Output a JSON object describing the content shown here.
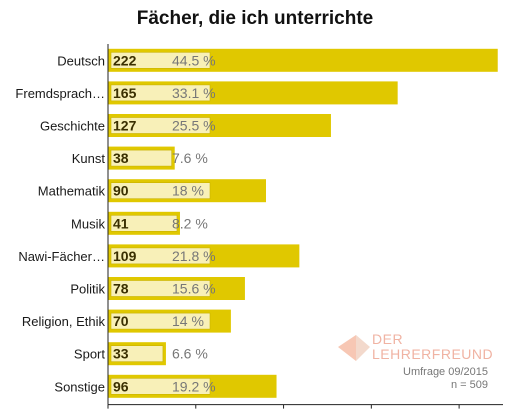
{
  "chart_data": {
    "type": "bar",
    "orientation": "horizontal",
    "title": "Fächer, die ich unterrichte",
    "categories": [
      "Deutsch",
      "Fremdsprach…",
      "Geschichte",
      "Kunst",
      "Mathematik",
      "Musik",
      "Nawi-Fächer…",
      "Politik",
      "Religion, Ethik",
      "Sport",
      "Sonstige"
    ],
    "values": [
      222,
      165,
      127,
      38,
      90,
      41,
      109,
      78,
      70,
      33,
      96
    ],
    "percent_labels": [
      "44.5 %",
      "33.1 %",
      "25.5 %",
      "7.6 %",
      "18 %",
      "8.2 %",
      "21.8 %",
      "15.6 %",
      "14 %",
      "6.6 %",
      "19.2 %"
    ],
    "xlim": [
      0,
      225
    ],
    "xticks": [
      0,
      50,
      100,
      150,
      200
    ],
    "xlabel": "",
    "ylabel": "",
    "grid": false,
    "bar_color": "#e0c800",
    "label_box_color": "#f8f0b8"
  },
  "logo": {
    "name_line1": "DER",
    "name_line2": "LEHRERFREUND"
  },
  "survey_info": {
    "line1": "Umfrage 09/2015",
    "line2": "n = 509"
  }
}
